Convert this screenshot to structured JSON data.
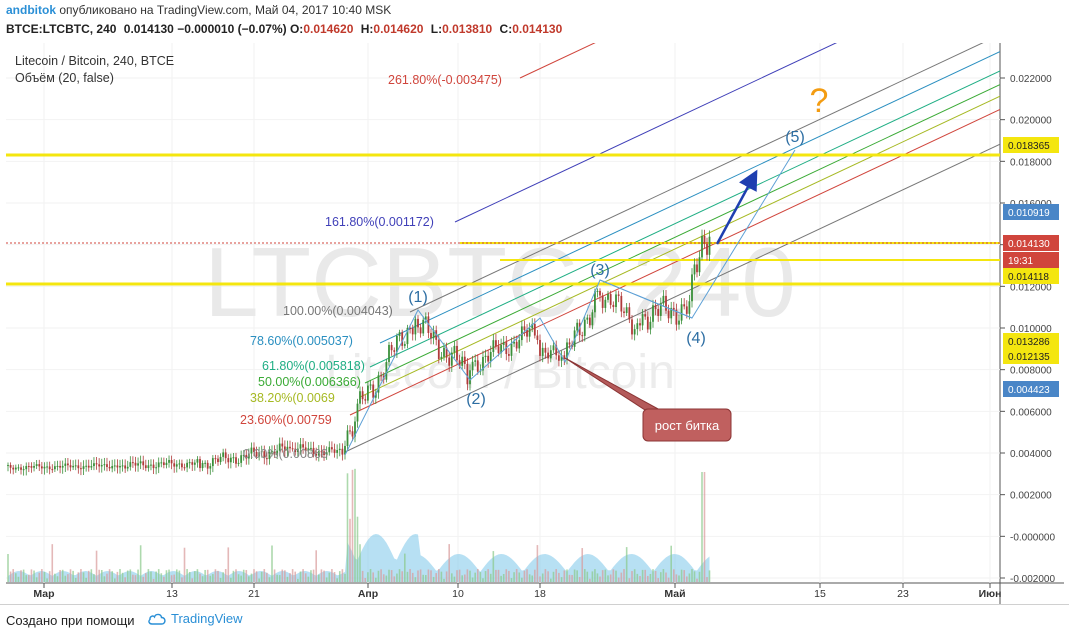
{
  "header": {
    "author": "andbitok",
    "published": "опубликовано на TradingView.com, Май 04, 2017 10:40 MSK",
    "symbol_line": "BTCE:LTCBTC, 240",
    "last": "0.014130",
    "change": "−0.000010 (−0.07%)",
    "o_label": "O:",
    "o": "0.014620",
    "h_label": "H:",
    "h": "0.014620",
    "l_label": "L:",
    "l": "0.013810",
    "c_label": "C:",
    "c": "0.014130"
  },
  "chart_data": {
    "type": "candlestick",
    "title": "Litecoin / Bitcoin, 240, BTCE",
    "subtitle": "Объём (20, false)",
    "watermark_big": "LTCBTC, 240",
    "watermark_small": "Litecoin / Bitcoin",
    "y_axis": {
      "ticks": [
        "0.022000",
        "0.020000",
        "0.018000",
        "0.016000",
        "0.014000",
        "0.012000",
        "0.010000",
        "0.008000",
        "0.006000",
        "0.004000",
        "0.002000",
        "-0.000000",
        "-0.002000"
      ],
      "ylim": [
        -0.0022,
        0.0245
      ]
    },
    "x_axis": {
      "ticks": [
        "Мар",
        "13",
        "21",
        "Апр",
        "10",
        "18",
        "Май",
        "15",
        "23",
        "Июн"
      ]
    },
    "price_labels": [
      {
        "value": "0.018365",
        "style": "yellow"
      },
      {
        "value": "0.010919",
        "style": "blue"
      },
      {
        "value": "0.014130",
        "style": "red"
      },
      {
        "value": "19:31",
        "style": "red"
      },
      {
        "value": "0.014118",
        "style": "yellow"
      },
      {
        "value": "0.013286",
        "style": "yellow"
      },
      {
        "value": "0.012135",
        "style": "yellow"
      },
      {
        "value": "0.004423",
        "style": "blue"
      }
    ],
    "fib_levels": [
      {
        "label": "261.80%(-0.003475)",
        "color": "#d0453c"
      },
      {
        "label": "161.80%(0.001172)",
        "color": "#3f3fb8"
      },
      {
        "label": "100.00%(0.004043)",
        "color": "#777777"
      },
      {
        "label": "78.60%(0.005037)",
        "color": "#2a8fc0"
      },
      {
        "label": "61.80%(0.005818)",
        "color": "#1fae84"
      },
      {
        "label": "50.00%(0.006366)",
        "color": "#3aaa35"
      },
      {
        "label": "38.20%(0.0069",
        "color": "#a6b923"
      },
      {
        "label": "23.60%(0.00759",
        "color": "#d0453c"
      },
      {
        "label": "0.00%(0.00868",
        "color": "#888888"
      }
    ],
    "wave_labels": [
      "(1)",
      "(2)",
      "(3)",
      "(4)",
      "(5)"
    ],
    "question": "?",
    "callout": "рост битка",
    "colors": {
      "up": "#3a8f3a",
      "down": "#b03a3a",
      "volume": "#7cc7ea",
      "yellow_line": "#f4e60f",
      "wave": "#5fa1d6"
    }
  },
  "footer": {
    "made_with": "Создано при помощи",
    "brand": "TradingView"
  }
}
